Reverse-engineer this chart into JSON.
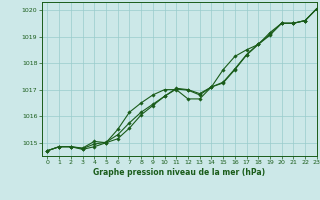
{
  "title": "Graphe pression niveau de la mer (hPa)",
  "bg_color": "#cce8e8",
  "plot_bg_color": "#cce8e8",
  "grid_color": "#99cccc",
  "line_color": "#1a5c1a",
  "xlim": [
    -0.5,
    23
  ],
  "ylim": [
    1014.5,
    1020.3
  ],
  "yticks": [
    1015,
    1016,
    1017,
    1018,
    1019,
    1020
  ],
  "xticks": [
    0,
    1,
    2,
    3,
    4,
    5,
    6,
    7,
    8,
    9,
    10,
    11,
    12,
    13,
    14,
    15,
    16,
    17,
    18,
    19,
    20,
    21,
    22,
    23
  ],
  "series1_x": [
    0,
    1,
    2,
    3,
    4,
    5,
    6,
    7,
    8,
    9,
    10,
    11,
    12,
    13,
    14,
    15,
    16,
    17,
    18,
    19,
    20,
    21,
    22,
    23
  ],
  "series1_y": [
    1014.7,
    1014.85,
    1014.85,
    1014.75,
    1014.85,
    1015.0,
    1015.15,
    1015.55,
    1016.05,
    1016.4,
    1016.75,
    1017.05,
    1017.0,
    1016.85,
    1017.1,
    1017.25,
    1017.75,
    1018.3,
    1018.7,
    1019.05,
    1019.5,
    1019.5,
    1019.6,
    1020.05
  ],
  "series2_x": [
    0,
    1,
    2,
    3,
    4,
    5,
    6,
    7,
    8,
    9,
    10,
    11,
    12,
    13,
    14,
    15,
    16,
    17,
    18,
    19,
    20,
    21,
    22,
    23
  ],
  "series2_y": [
    1014.7,
    1014.85,
    1014.85,
    1014.8,
    1015.05,
    1015.0,
    1015.5,
    1016.15,
    1016.5,
    1016.8,
    1017.0,
    1017.0,
    1016.65,
    1016.65,
    1017.1,
    1017.75,
    1018.25,
    1018.5,
    1018.7,
    1019.15,
    1019.5,
    1019.5,
    1019.6,
    1020.05
  ],
  "series3_x": [
    0,
    1,
    2,
    3,
    4,
    5,
    6,
    7,
    8,
    9,
    10,
    11,
    12,
    13,
    14,
    15,
    16,
    17,
    18,
    19,
    20,
    21,
    22,
    23
  ],
  "series3_y": [
    1014.7,
    1014.85,
    1014.85,
    1014.78,
    1014.95,
    1015.02,
    1015.3,
    1015.75,
    1016.15,
    1016.45,
    1016.75,
    1017.02,
    1016.98,
    1016.8,
    1017.1,
    1017.28,
    1017.78,
    1018.32,
    1018.72,
    1019.08,
    1019.5,
    1019.5,
    1019.6,
    1020.05
  ]
}
